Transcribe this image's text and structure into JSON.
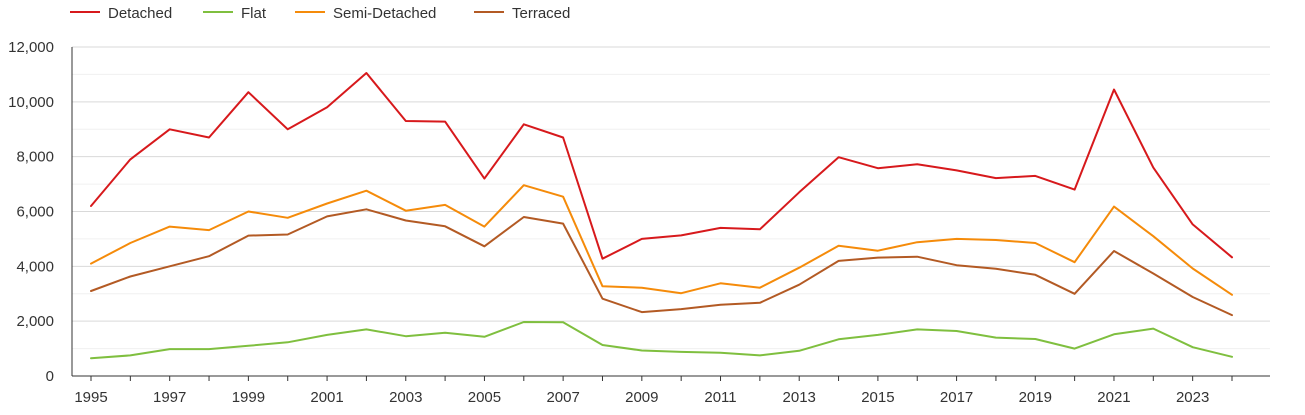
{
  "chart_data": {
    "type": "line",
    "title": "",
    "xlabel": "",
    "ylabel": "",
    "x": [
      1995,
      1996,
      1997,
      1998,
      1999,
      2000,
      2001,
      2002,
      2003,
      2004,
      2005,
      2006,
      2007,
      2008,
      2009,
      2010,
      2011,
      2012,
      2013,
      2014,
      2015,
      2016,
      2017,
      2018,
      2019,
      2020,
      2021,
      2022,
      2023,
      2024
    ],
    "x_tick_labels": [
      "1995",
      "1997",
      "1999",
      "2001",
      "2003",
      "2005",
      "2007",
      "2009",
      "2011",
      "2013",
      "2015",
      "2017",
      "2019",
      "2021",
      "2023"
    ],
    "y_ticks": [
      0,
      2000,
      4000,
      6000,
      8000,
      10000,
      12000
    ],
    "y_tick_labels": [
      "0",
      "2,000",
      "4,000",
      "6,000",
      "8,000",
      "10,000",
      "12,000"
    ],
    "ylim": [
      0,
      12000
    ],
    "xlim": [
      1995,
      2024
    ],
    "grid": true,
    "legend_position": "top-left",
    "series": [
      {
        "name": "Detached",
        "color": "#d7191c",
        "values": [
          6200,
          7900,
          9000,
          8700,
          10350,
          9000,
          9800,
          11050,
          9300,
          9280,
          7200,
          9180,
          8700,
          4280,
          5000,
          5130,
          5400,
          5350,
          6700,
          7980,
          7580,
          7720,
          7500,
          7220,
          7300,
          6800,
          10450,
          7600,
          5530,
          4330
        ]
      },
      {
        "name": "Flat",
        "color": "#7fbf3f",
        "values": [
          650,
          750,
          980,
          980,
          1100,
          1230,
          1500,
          1700,
          1450,
          1580,
          1430,
          1970,
          1960,
          1130,
          930,
          880,
          850,
          750,
          920,
          1340,
          1500,
          1700,
          1640,
          1400,
          1350,
          1000,
          1520,
          1730,
          1050,
          700
        ]
      },
      {
        "name": "Semi-Detached",
        "color": "#f58b0a",
        "values": [
          4100,
          4850,
          5450,
          5320,
          6000,
          5770,
          6290,
          6760,
          6030,
          6240,
          5450,
          6960,
          6540,
          3270,
          3220,
          3020,
          3380,
          3220,
          3950,
          4750,
          4570,
          4880,
          5000,
          4960,
          4850,
          4150,
          6180,
          5100,
          3920,
          2960
        ]
      },
      {
        "name": "Terraced",
        "color": "#b35a24",
        "values": [
          3100,
          3630,
          4000,
          4370,
          5120,
          5160,
          5820,
          6080,
          5670,
          5460,
          4730,
          5800,
          5560,
          2820,
          2330,
          2440,
          2600,
          2670,
          3330,
          4200,
          4320,
          4350,
          4040,
          3910,
          3690,
          3000,
          4560,
          3740,
          2880,
          2220
        ]
      }
    ]
  }
}
